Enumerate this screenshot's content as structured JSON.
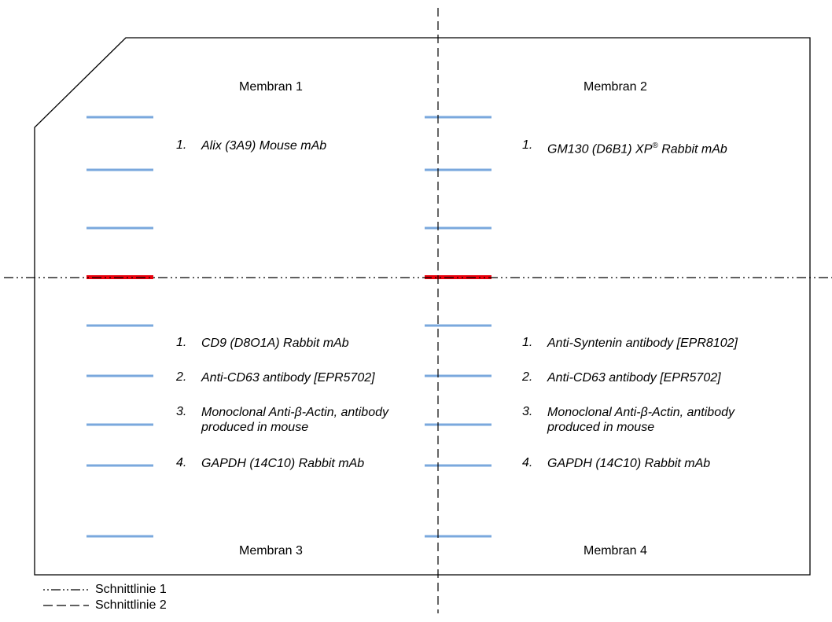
{
  "membranes": [
    {
      "id": 1,
      "label": "Membran 1"
    },
    {
      "id": 2,
      "label": "Membran 2"
    },
    {
      "id": 3,
      "label": "Membran 3"
    },
    {
      "id": 4,
      "label": "Membran 4"
    }
  ],
  "antibodies": {
    "membrane1": [
      {
        "num": "1.",
        "text": "Alix (3A9) Mouse mAb"
      }
    ],
    "membrane2": [
      {
        "num": "1.",
        "text_main": "GM130 (D6B1) XP",
        "text_sup": "®",
        "text_end": " Rabbit mAb"
      }
    ],
    "membrane3": [
      {
        "num": "1.",
        "text": "CD9 (D8O1A) Rabbit mAb"
      },
      {
        "num": "2.",
        "text": "Anti-CD63 antibody [EPR5702]"
      },
      {
        "num": "3.",
        "text": "Monoclonal Anti-β-Actin, antibody produced in mouse"
      },
      {
        "num": "4.",
        "text": "GAPDH (14C10) Rabbit mAb"
      }
    ],
    "membrane4": [
      {
        "num": "1.",
        "text": "Anti-Syntenin antibody [EPR8102]"
      },
      {
        "num": "2.",
        "text": "Anti-CD63 antibody [EPR5702]"
      },
      {
        "num": "3.",
        "text": "Monoclonal Anti-β-Actin, antibody produced in mouse"
      },
      {
        "num": "4.",
        "text": "GAPDH (14C10) Rabbit mAb"
      }
    ]
  },
  "legend": {
    "line1": "Schnittlinie 1",
    "line2": "Schnittlinie 2"
  },
  "colors": {
    "marker": "#7aa8dd",
    "cut_marker": "#e8000b",
    "outline": "#000000"
  }
}
